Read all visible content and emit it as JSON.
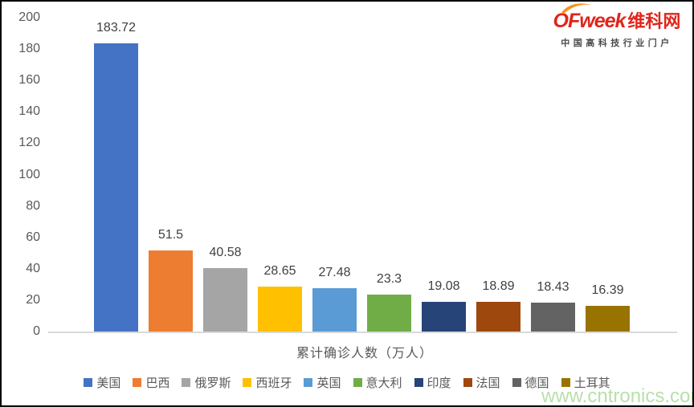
{
  "chart_data": {
    "type": "bar",
    "categories": [
      "美国",
      "巴西",
      "俄罗斯",
      "西班牙",
      "英国",
      "意大利",
      "印度",
      "法国",
      "德国",
      "土耳其"
    ],
    "values": [
      183.72,
      51.5,
      40.58,
      28.65,
      27.48,
      23.3,
      19.08,
      18.89,
      18.43,
      16.39
    ],
    "value_labels": [
      "183.72",
      "51.5",
      "40.58",
      "28.65",
      "27.48",
      "23.3",
      "19.08",
      "18.89",
      "18.43",
      "16.39"
    ],
    "bar_colors": [
      "#4472C4",
      "#ED7D31",
      "#A5A5A5",
      "#FFC000",
      "#5B9BD5",
      "#70AD47",
      "#264478",
      "#9E480E",
      "#636363",
      "#997300"
    ],
    "title": "",
    "xlabel": "累计确诊人数（万人）",
    "ylabel": "",
    "ylim": [
      0,
      200
    ],
    "yticks": [
      0,
      20,
      40,
      60,
      80,
      100,
      120,
      140,
      160,
      180,
      200
    ],
    "grid": false,
    "legend_position": "bottom"
  },
  "logo": {
    "brand": "OFweek",
    "brand_cn": "维科网",
    "tagline": "中国高科技行业门户",
    "brand_color": "#e1251b",
    "swoosh_color": "#f7941d"
  },
  "watermark": {
    "text": "www.cntronics.com",
    "color": "#b9dfab"
  }
}
